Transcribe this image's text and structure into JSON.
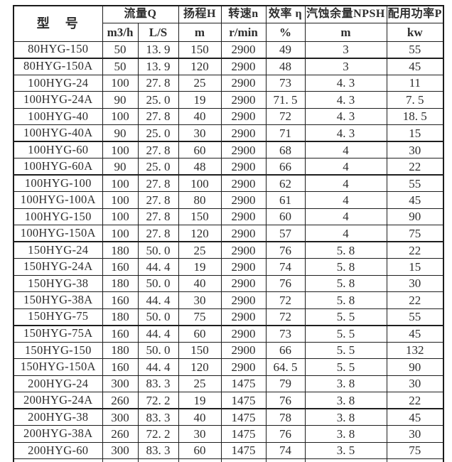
{
  "table": {
    "header": {
      "model": "型　号",
      "flow": "流量Q",
      "flow_unit_m3h": "m3/h",
      "flow_unit_ls": "L/S",
      "head": "扬程H",
      "head_unit": "m",
      "speed": "转速n",
      "speed_unit": "r/min",
      "efficiency": "效率 η",
      "efficiency_unit": "%",
      "npsh": "汽蚀余量NPSH",
      "npsh_unit": "m",
      "power": "配用功率P",
      "power_unit": "kw"
    },
    "rows": [
      {
        "model": "80HYG-150",
        "m3h": "50",
        "ls": "13. 9",
        "head": "150",
        "speed": "2900",
        "eff": "49",
        "npsh": "3",
        "power": "55",
        "group_start": false
      },
      {
        "model": "80HYG-150A",
        "m3h": "50",
        "ls": "13. 9",
        "head": "120",
        "speed": "2900",
        "eff": "48",
        "npsh": "3",
        "power": "45",
        "group_start": true
      },
      {
        "model": "100HYG-24",
        "m3h": "100",
        "ls": "27. 8",
        "head": "25",
        "speed": "2900",
        "eff": "73",
        "npsh": "4. 3",
        "power": "11",
        "group_start": false
      },
      {
        "model": "100HYG-24A",
        "m3h": "90",
        "ls": "25. 0",
        "head": "19",
        "speed": "2900",
        "eff": "71. 5",
        "npsh": "4. 3",
        "power": "7. 5",
        "group_start": false
      },
      {
        "model": "100HYG-40",
        "m3h": "100",
        "ls": "27. 8",
        "head": "40",
        "speed": "2900",
        "eff": "72",
        "npsh": "4. 3",
        "power": "18. 5",
        "group_start": false
      },
      {
        "model": "100HYG-40A",
        "m3h": "90",
        "ls": "25. 0",
        "head": "30",
        "speed": "2900",
        "eff": "71",
        "npsh": "4. 3",
        "power": "15",
        "group_start": false
      },
      {
        "model": "100HYG-60",
        "m3h": "100",
        "ls": "27. 8",
        "head": "60",
        "speed": "2900",
        "eff": "68",
        "npsh": "4",
        "power": "30",
        "group_start": true
      },
      {
        "model": "100HYG-60A",
        "m3h": "90",
        "ls": "25. 0",
        "head": "48",
        "speed": "2900",
        "eff": "66",
        "npsh": "4",
        "power": "22",
        "group_start": false
      },
      {
        "model": "100HYG-100",
        "m3h": "100",
        "ls": "27. 8",
        "head": "100",
        "speed": "2900",
        "eff": "62",
        "npsh": "4",
        "power": "55",
        "group_start": true
      },
      {
        "model": "100HYG-100A",
        "m3h": "100",
        "ls": "27. 8",
        "head": "80",
        "speed": "2900",
        "eff": "61",
        "npsh": "4",
        "power": "45",
        "group_start": false
      },
      {
        "model": "100HYG-150",
        "m3h": "100",
        "ls": "27. 8",
        "head": "150",
        "speed": "2900",
        "eff": "60",
        "npsh": "4",
        "power": "90",
        "group_start": false
      },
      {
        "model": "100HYG-150A",
        "m3h": "100",
        "ls": "27. 8",
        "head": "120",
        "speed": "2900",
        "eff": "57",
        "npsh": "4",
        "power": "75",
        "group_start": false
      },
      {
        "model": "150HYG-24",
        "m3h": "180",
        "ls": "50. 0",
        "head": "25",
        "speed": "2900",
        "eff": "76",
        "npsh": "5. 8",
        "power": "22",
        "group_start": true
      },
      {
        "model": "150HYG-24A",
        "m3h": "160",
        "ls": "44. 4",
        "head": "19",
        "speed": "2900",
        "eff": "74",
        "npsh": "5. 8",
        "power": "15",
        "group_start": false
      },
      {
        "model": "150HYG-38",
        "m3h": "180",
        "ls": "50. 0",
        "head": "40",
        "speed": "2900",
        "eff": "76",
        "npsh": "5. 8",
        "power": "30",
        "group_start": false
      },
      {
        "model": "150HYG-38A",
        "m3h": "160",
        "ls": "44. 4",
        "head": "30",
        "speed": "2900",
        "eff": "72",
        "npsh": "5. 8",
        "power": "22",
        "group_start": false
      },
      {
        "model": "150HYG-75",
        "m3h": "180",
        "ls": "50. 0",
        "head": "75",
        "speed": "2900",
        "eff": "72",
        "npsh": "5. 5",
        "power": "55",
        "group_start": false
      },
      {
        "model": "150HYG-75A",
        "m3h": "160",
        "ls": "44. 4",
        "head": "60",
        "speed": "2900",
        "eff": "73",
        "npsh": "5. 5",
        "power": "45",
        "group_start": true
      },
      {
        "model": "150HYG-150",
        "m3h": "180",
        "ls": "50. 0",
        "head": "150",
        "speed": "2900",
        "eff": "66",
        "npsh": "5. 5",
        "power": "132",
        "group_start": false
      },
      {
        "model": "150HYG-150A",
        "m3h": "160",
        "ls": "44. 4",
        "head": "120",
        "speed": "2900",
        "eff": "64. 5",
        "npsh": "5. 5",
        "power": "90",
        "group_start": false
      },
      {
        "model": "200HYG-24",
        "m3h": "300",
        "ls": "83. 3",
        "head": "25",
        "speed": "1475",
        "eff": "79",
        "npsh": "3. 8",
        "power": "30",
        "group_start": false
      },
      {
        "model": "200HYG-24A",
        "m3h": "260",
        "ls": "72. 2",
        "head": "19",
        "speed": "1475",
        "eff": "76",
        "npsh": "3. 8",
        "power": "22",
        "group_start": false
      },
      {
        "model": "200HYG-38",
        "m3h": "300",
        "ls": "83. 3",
        "head": "40",
        "speed": "1475",
        "eff": "78",
        "npsh": "3. 8",
        "power": "45",
        "group_start": true
      },
      {
        "model": "200HYG-38A",
        "m3h": "260",
        "ls": "72. 2",
        "head": "30",
        "speed": "1475",
        "eff": "76",
        "npsh": "3. 8",
        "power": "30",
        "group_start": false
      },
      {
        "model": "200HYG-60",
        "m3h": "300",
        "ls": "83. 3",
        "head": "60",
        "speed": "1475",
        "eff": "74",
        "npsh": "3. 5",
        "power": "75",
        "group_start": false
      }
    ]
  }
}
